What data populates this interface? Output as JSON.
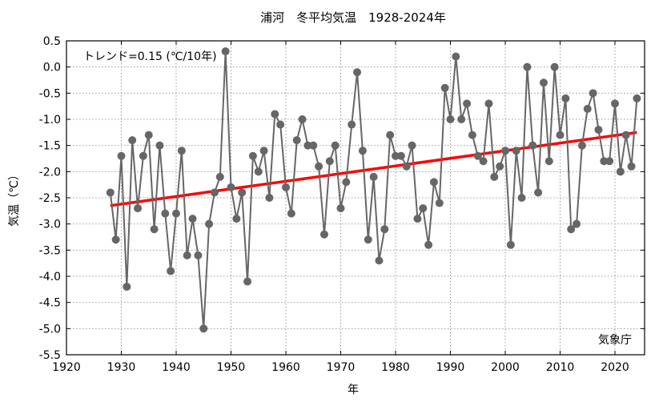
{
  "chart_data": {
    "type": "line",
    "title": "浦河　冬平均気温　1928-2024年",
    "xlabel": "年",
    "ylabel": "気温（℃）",
    "xlim": [
      1920,
      2025.4
    ],
    "ylim": [
      -5.5,
      0.5
    ],
    "xticks": [
      1920,
      1930,
      1940,
      1950,
      1960,
      1970,
      1980,
      1990,
      2000,
      2010,
      2020
    ],
    "yticks": [
      0.5,
      0.0,
      -0.5,
      -1.0,
      -1.5,
      -2.0,
      -2.5,
      -3.0,
      -3.5,
      -4.0,
      -4.5,
      -5.0,
      -5.5
    ],
    "ytick_labels": [
      "0.5",
      "0.0",
      "-0.5",
      "-1.0",
      "-1.5",
      "-2.0",
      "-2.5",
      "-3.0",
      "-3.5",
      "-4.0",
      "-4.5",
      "-5.0",
      "-5.5"
    ],
    "grid": true,
    "trend_label": "トレンド=0.15 (℃/10年)",
    "source_label": "気象庁",
    "series": [
      {
        "name": "冬平均気温",
        "color": "#666666",
        "x_start": 1928,
        "values": [
          -2.4,
          -3.3,
          -1.7,
          -4.2,
          -1.4,
          -2.7,
          -1.7,
          -1.3,
          -3.1,
          -1.5,
          -2.8,
          -3.9,
          -2.8,
          -1.6,
          -3.6,
          -2.9,
          -3.6,
          -5.0,
          -3.0,
          -2.4,
          -2.1,
          0.3,
          -2.3,
          -2.9,
          -2.4,
          -4.1,
          -1.7,
          -2.0,
          -1.6,
          -2.5,
          -0.9,
          -1.1,
          -2.3,
          -2.8,
          -1.4,
          -1.0,
          -1.5,
          -1.5,
          -1.9,
          -3.2,
          -1.8,
          -1.5,
          -2.7,
          -2.2,
          -1.1,
          -0.1,
          -1.6,
          -3.3,
          -2.1,
          -3.7,
          -3.1,
          -1.3,
          -1.7,
          -1.7,
          -1.9,
          -1.5,
          -2.9,
          -2.7,
          -3.4,
          -2.2,
          -2.6,
          -0.4,
          -1.0,
          0.2,
          -1.0,
          -0.7,
          -1.3,
          -1.7,
          -1.8,
          -0.7,
          -2.1,
          -1.9,
          -1.6,
          -3.4,
          -1.6,
          -2.5,
          0.0,
          -1.5,
          -2.4,
          -0.3,
          -1.8,
          0.0,
          -1.3,
          -0.6,
          -3.1,
          -3.0,
          -1.5,
          -0.8,
          -0.5,
          -1.2,
          -1.8,
          -1.8,
          -0.7,
          -2.0,
          -1.3,
          -1.9,
          -0.6
        ]
      },
      {
        "name": "トレンド",
        "color": "#ff0000",
        "x": [
          1928,
          2024
        ],
        "values": [
          -2.65,
          -1.25
        ]
      }
    ]
  }
}
